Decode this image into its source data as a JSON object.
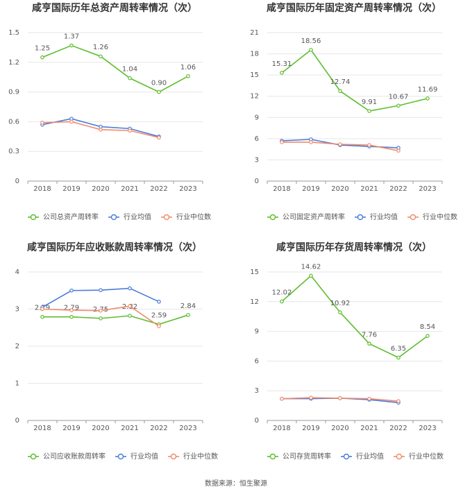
{
  "chart_data": [
    {
      "type": "line",
      "title": "咸亨国际历年总资产周转率情况（次）",
      "categories": [
        "2018",
        "2019",
        "2020",
        "2021",
        "2022",
        "2023"
      ],
      "ylim": [
        0,
        1.5
      ],
      "yticks": [
        0,
        0.3,
        0.6,
        0.9,
        1.2,
        1.5
      ],
      "grid": true,
      "legend": "bottom",
      "series": [
        {
          "name": "公司总资产周转率",
          "color": "#5cbd2c",
          "values": [
            1.25,
            1.37,
            1.26,
            1.04,
            0.9,
            1.06
          ],
          "value_labels": [
            "1.25",
            "1.37",
            "1.26",
            "1.04",
            "0.90",
            "1.06"
          ]
        },
        {
          "name": "行业均值",
          "color": "#4a7bd9",
          "values": [
            0.57,
            0.63,
            0.55,
            0.53,
            0.45,
            null
          ]
        },
        {
          "name": "行业中位数",
          "color": "#f08a6a",
          "values": [
            0.59,
            0.6,
            0.52,
            0.51,
            0.44,
            null
          ]
        }
      ]
    },
    {
      "type": "line",
      "title": "咸亨国际历年固定资产周转率情况（次）",
      "categories": [
        "2018",
        "2019",
        "2020",
        "2021",
        "2022",
        "2023"
      ],
      "ylim": [
        0,
        21
      ],
      "yticks": [
        0,
        3,
        6,
        9,
        12,
        15,
        18,
        21
      ],
      "grid": true,
      "legend": "bottom",
      "series": [
        {
          "name": "公司固定资产周转率",
          "color": "#5cbd2c",
          "values": [
            15.31,
            18.56,
            12.74,
            9.91,
            10.67,
            11.69
          ]
        },
        {
          "name": "行业均值",
          "color": "#4a7bd9",
          "values": [
            5.7,
            5.9,
            5.1,
            4.9,
            4.7,
            null
          ]
        },
        {
          "name": "行业中位数",
          "color": "#f08a6a",
          "values": [
            5.5,
            5.5,
            5.2,
            5.1,
            4.3,
            null
          ]
        }
      ]
    },
    {
      "type": "line",
      "title": "咸亨国际历年应收账款周转率情况（次）",
      "categories": [
        "2018",
        "2019",
        "2020",
        "2021",
        "2022",
        "2023"
      ],
      "ylim": [
        0,
        4
      ],
      "yticks": [
        0,
        1,
        2,
        3,
        4
      ],
      "grid": true,
      "legend": "bottom",
      "series": [
        {
          "name": "公司应收账款周转率",
          "color": "#5cbd2c",
          "values": [
            2.79,
            2.79,
            2.75,
            2.82,
            2.59,
            2.84
          ]
        },
        {
          "name": "行业均值",
          "color": "#4a7bd9",
          "values": [
            3.05,
            3.5,
            3.51,
            3.56,
            3.2,
            null
          ]
        },
        {
          "name": "行业中位数",
          "color": "#f08a6a",
          "values": [
            3.0,
            2.97,
            2.96,
            3.08,
            2.54,
            null
          ]
        }
      ]
    },
    {
      "type": "line",
      "title": "咸亨国际历年存货周转率情况（次）",
      "categories": [
        "2018",
        "2019",
        "2020",
        "2021",
        "2022",
        "2023"
      ],
      "ylim": [
        0,
        15
      ],
      "yticks": [
        0,
        3,
        6,
        9,
        12,
        15
      ],
      "grid": true,
      "legend": "bottom",
      "series": [
        {
          "name": "公司存货周转率",
          "color": "#5cbd2c",
          "values": [
            12.02,
            14.62,
            10.92,
            7.76,
            6.35,
            8.54
          ]
        },
        {
          "name": "行业均值",
          "color": "#4a7bd9",
          "values": [
            2.2,
            2.2,
            2.25,
            2.1,
            1.8,
            null
          ]
        },
        {
          "name": "行业中位数",
          "color": "#f08a6a",
          "values": [
            2.2,
            2.3,
            2.25,
            2.2,
            1.95,
            null
          ]
        }
      ]
    }
  ],
  "source": "数据来源：恒生聚源"
}
